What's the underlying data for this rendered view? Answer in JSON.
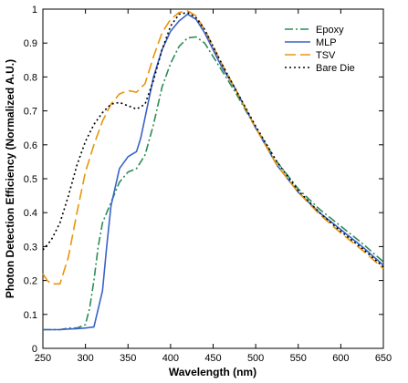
{
  "chart_data": {
    "type": "line",
    "title": "",
    "xlabel": "Wavelength (nm)",
    "ylabel": "Photon Detection Efficiency (Normalized A.U.)",
    "xlim": [
      250,
      650
    ],
    "ylim": [
      0,
      1
    ],
    "x_ticks": [
      250,
      300,
      350,
      400,
      450,
      500,
      550,
      600,
      650
    ],
    "y_ticks": [
      0,
      0.1,
      0.2,
      0.3,
      0.4,
      0.5,
      0.6,
      0.7,
      0.8,
      0.9,
      1
    ],
    "legend_position": "top-right",
    "series": [
      {
        "name": "Epoxy",
        "color": "#2e8b57",
        "dash": "dashdot",
        "points": [
          [
            250,
            0.055
          ],
          [
            260,
            0.055
          ],
          [
            270,
            0.055
          ],
          [
            280,
            0.06
          ],
          [
            290,
            0.06
          ],
          [
            300,
            0.07
          ],
          [
            305,
            0.12
          ],
          [
            310,
            0.2
          ],
          [
            315,
            0.3
          ],
          [
            320,
            0.37
          ],
          [
            330,
            0.43
          ],
          [
            340,
            0.49
          ],
          [
            350,
            0.52
          ],
          [
            360,
            0.53
          ],
          [
            370,
            0.57
          ],
          [
            380,
            0.66
          ],
          [
            390,
            0.77
          ],
          [
            400,
            0.84
          ],
          [
            410,
            0.89
          ],
          [
            420,
            0.915
          ],
          [
            430,
            0.918
          ],
          [
            440,
            0.9
          ],
          [
            450,
            0.86
          ],
          [
            460,
            0.82
          ],
          [
            475,
            0.76
          ],
          [
            500,
            0.65
          ],
          [
            525,
            0.55
          ],
          [
            550,
            0.47
          ],
          [
            575,
            0.41
          ],
          [
            600,
            0.36
          ],
          [
            625,
            0.31
          ],
          [
            650,
            0.255
          ]
        ]
      },
      {
        "name": "MLP",
        "color": "#3a62c8",
        "dash": "solid",
        "points": [
          [
            250,
            0.055
          ],
          [
            260,
            0.055
          ],
          [
            270,
            0.055
          ],
          [
            280,
            0.057
          ],
          [
            290,
            0.058
          ],
          [
            300,
            0.06
          ],
          [
            310,
            0.063
          ],
          [
            320,
            0.17
          ],
          [
            325,
            0.3
          ],
          [
            330,
            0.42
          ],
          [
            340,
            0.53
          ],
          [
            350,
            0.565
          ],
          [
            360,
            0.58
          ],
          [
            365,
            0.62
          ],
          [
            370,
            0.68
          ],
          [
            380,
            0.8
          ],
          [
            390,
            0.88
          ],
          [
            400,
            0.935
          ],
          [
            410,
            0.965
          ],
          [
            420,
            0.985
          ],
          [
            430,
            0.97
          ],
          [
            440,
            0.93
          ],
          [
            450,
            0.88
          ],
          [
            460,
            0.83
          ],
          [
            475,
            0.77
          ],
          [
            500,
            0.65
          ],
          [
            525,
            0.54
          ],
          [
            550,
            0.46
          ],
          [
            575,
            0.4
          ],
          [
            600,
            0.35
          ],
          [
            625,
            0.3
          ],
          [
            650,
            0.245
          ]
        ]
      },
      {
        "name": "TSV",
        "color": "#e8950c",
        "dash": "longdash",
        "points": [
          [
            250,
            0.22
          ],
          [
            255,
            0.2
          ],
          [
            260,
            0.19
          ],
          [
            270,
            0.19
          ],
          [
            280,
            0.27
          ],
          [
            290,
            0.4
          ],
          [
            300,
            0.52
          ],
          [
            310,
            0.6
          ],
          [
            320,
            0.67
          ],
          [
            330,
            0.72
          ],
          [
            340,
            0.75
          ],
          [
            350,
            0.76
          ],
          [
            360,
            0.755
          ],
          [
            370,
            0.78
          ],
          [
            380,
            0.86
          ],
          [
            390,
            0.93
          ],
          [
            400,
            0.97
          ],
          [
            410,
            0.99
          ],
          [
            420,
            0.995
          ],
          [
            430,
            0.98
          ],
          [
            440,
            0.94
          ],
          [
            450,
            0.89
          ],
          [
            460,
            0.84
          ],
          [
            475,
            0.77
          ],
          [
            500,
            0.65
          ],
          [
            525,
            0.54
          ],
          [
            550,
            0.46
          ],
          [
            575,
            0.395
          ],
          [
            600,
            0.34
          ],
          [
            625,
            0.29
          ],
          [
            650,
            0.235
          ]
        ]
      },
      {
        "name": "Bare Die",
        "color": "#000000",
        "dash": "dotted",
        "points": [
          [
            250,
            0.29
          ],
          [
            260,
            0.32
          ],
          [
            270,
            0.37
          ],
          [
            280,
            0.45
          ],
          [
            290,
            0.54
          ],
          [
            300,
            0.61
          ],
          [
            310,
            0.66
          ],
          [
            320,
            0.695
          ],
          [
            330,
            0.72
          ],
          [
            340,
            0.725
          ],
          [
            350,
            0.715
          ],
          [
            360,
            0.705
          ],
          [
            370,
            0.72
          ],
          [
            380,
            0.79
          ],
          [
            390,
            0.88
          ],
          [
            400,
            0.95
          ],
          [
            410,
            0.985
          ],
          [
            420,
            0.99
          ],
          [
            430,
            0.975
          ],
          [
            440,
            0.94
          ],
          [
            450,
            0.89
          ],
          [
            460,
            0.84
          ],
          [
            475,
            0.77
          ],
          [
            500,
            0.655
          ],
          [
            525,
            0.55
          ],
          [
            550,
            0.465
          ],
          [
            575,
            0.4
          ],
          [
            600,
            0.345
          ],
          [
            625,
            0.295
          ],
          [
            650,
            0.24
          ]
        ]
      }
    ]
  }
}
